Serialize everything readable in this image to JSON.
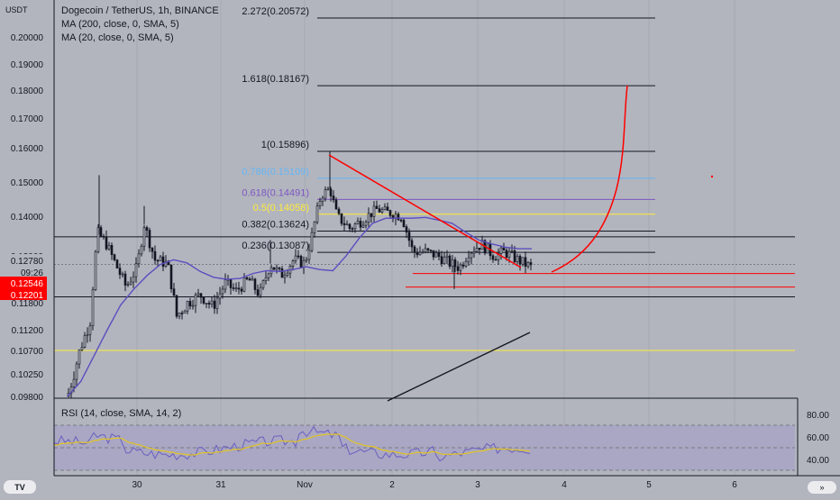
{
  "header": {
    "symbol_line": "Dogecoin / TetherUS, 1h, BINANCE",
    "indicator_1": "MA (200, close, 0, SMA, 5)",
    "indicator_2": "MA (20, close, 0, SMA, 5)"
  },
  "price_scale": {
    "currency": "USDT",
    "ticks": [
      "0.20000",
      "0.19000",
      "0.18000",
      "0.17000",
      "0.16000",
      "0.15000",
      "0.14000",
      "0.13000",
      "0.11800",
      "0.11200",
      "0.10700",
      "0.10250",
      "0.09800"
    ],
    "labels": [
      {
        "text": "0.12780",
        "bg": "#b2b5be",
        "fg": "#131722"
      },
      {
        "text": "09:26",
        "bg": "#b2b5be",
        "fg": "#131722"
      },
      {
        "text": "0.12546",
        "bg": "#ff0000",
        "fg": "#ffffff"
      },
      {
        "text": "0.12201",
        "bg": "#ff0000",
        "fg": "#ffffff"
      }
    ]
  },
  "time_scale": {
    "labels": [
      "30",
      "31",
      "Nov",
      "2",
      "3",
      "4",
      "5",
      "6"
    ]
  },
  "rsi": {
    "label": "RSI (14, close, SMA, 14, 2)",
    "ticks": [
      "80.00",
      "60.00",
      "40.00"
    ]
  },
  "colors": {
    "background": "#b2b5be",
    "candle": "#131722",
    "ma200": "#131722",
    "ma20": "#5b4ec0",
    "trendline": "#ff0000",
    "rsi_line": "#6a5fc1",
    "rsi_ma": "#e3c420",
    "rsi_band": "#a9a7c3"
  },
  "chart_data": {
    "type": "candlestick",
    "title": "Dogecoin / TetherUS, 1h, BINANCE",
    "y_range": [
      0.0975,
      0.2062
    ],
    "x_labels": [
      "30",
      "31",
      "Nov",
      "2",
      "3",
      "4",
      "5",
      "6"
    ],
    "fibonacci": [
      {
        "label": "2.272(0.20572)",
        "level": 2.272,
        "price": 0.20572,
        "color": "#131722"
      },
      {
        "label": "1.618(0.18167)",
        "level": 1.618,
        "price": 0.18167,
        "color": "#131722"
      },
      {
        "label": "1(0.15896)",
        "level": 1,
        "price": 0.15896,
        "color": "#131722"
      },
      {
        "label": "0.786(0.15109)",
        "level": 0.786,
        "price": 0.15109,
        "color": "#64b5f6"
      },
      {
        "label": "0.618(0.14491)",
        "level": 0.618,
        "price": 0.14491,
        "color": "#7e57c2"
      },
      {
        "label": "0.5(0.14058)",
        "level": 0.5,
        "price": 0.14058,
        "color": "#ffeb3b"
      },
      {
        "label": "0.382(0.13624)",
        "level": 0.382,
        "price": 0.13624,
        "color": "#131722"
      },
      {
        "label": "0.236(0.13087)",
        "level": 0.236,
        "price": 0.13087,
        "color": "#131722"
      }
    ],
    "horizontal_levels": [
      {
        "price": 0.1348,
        "color": "#131722"
      },
      {
        "price": 0.12546,
        "color": "#ff0000"
      },
      {
        "price": 0.12201,
        "color": "#ff0000"
      },
      {
        "price": 0.1195,
        "color": "#131722"
      },
      {
        "price": 0.107,
        "color": "#ffeb3b"
      }
    ],
    "rsi": {
      "range": [
        0,
        100
      ],
      "bands": [
        30,
        50,
        70
      ]
    },
    "series": [
      {
        "name": "MA (20, close, 0, SMA, 5)",
        "values": [
          0.098,
          0.101,
          0.106,
          0.112,
          0.1175,
          0.1215,
          0.125,
          0.1278,
          0.129,
          0.1282,
          0.126,
          0.1245,
          0.124,
          0.1242,
          0.1255,
          0.1262,
          0.126,
          0.1265,
          0.1272,
          0.1265,
          0.1262,
          0.13,
          0.1345,
          0.1382,
          0.1395,
          0.1395,
          0.1395,
          0.1397,
          0.139,
          0.1382,
          0.136,
          0.134,
          0.133,
          0.1322,
          0.1318,
          0.1318
        ]
      }
    ]
  }
}
